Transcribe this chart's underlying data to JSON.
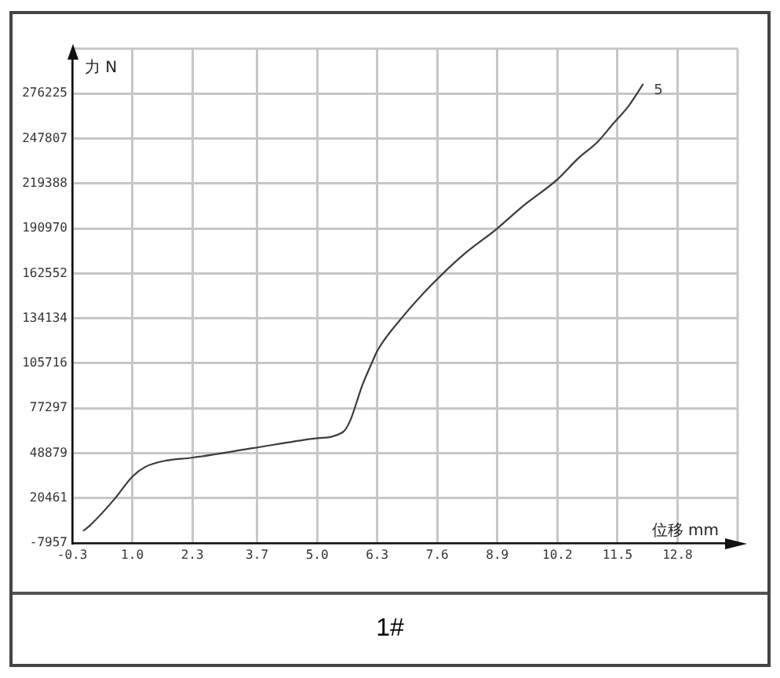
{
  "chart_data": {
    "type": "line",
    "xlabel": "位移 mm",
    "ylabel": "力 N",
    "annotations": [
      "1#"
    ],
    "x": [
      -0.05,
      0.08,
      0.62,
      1.0,
      1.27,
      1.7,
      2.3,
      3.6,
      4.9,
      5.55,
      5.71,
      5.98,
      6.2,
      6.31,
      6.85,
      7.5,
      8.15,
      8.9,
      9.45,
      10.2,
      10.64,
      11.08,
      11.4,
      11.73,
      12.05
    ],
    "series": [
      {
        "name": "5",
        "color": "#3c3c3c",
        "values": [
          0,
          3000,
          20000,
          34000,
          40000,
          44000,
          46000,
          52000,
          58000,
          62000,
          69000,
          92000,
          107000,
          114000,
          135000,
          156000,
          174000,
          191000,
          205000,
          222000,
          235000,
          246000,
          257000,
          268000,
          282000
        ]
      }
    ],
    "xlim": [
      -0.3,
      14.1
    ],
    "xticks": [
      -0.3,
      {
        "value": 1,
        "label": "1.0"
      },
      2.3,
      3.7,
      {
        "value": 5,
        "label": "5.0"
      },
      6.3,
      7.6,
      8.9,
      10.2,
      11.5,
      12.8
    ],
    "ylim": [
      -7957,
      304643
    ],
    "yticks": [
      -7957,
      20461,
      48879,
      77297,
      105716,
      134134,
      162552,
      190970,
      219388,
      247807,
      276225
    ],
    "grid": true,
    "line_style": "solid"
  }
}
